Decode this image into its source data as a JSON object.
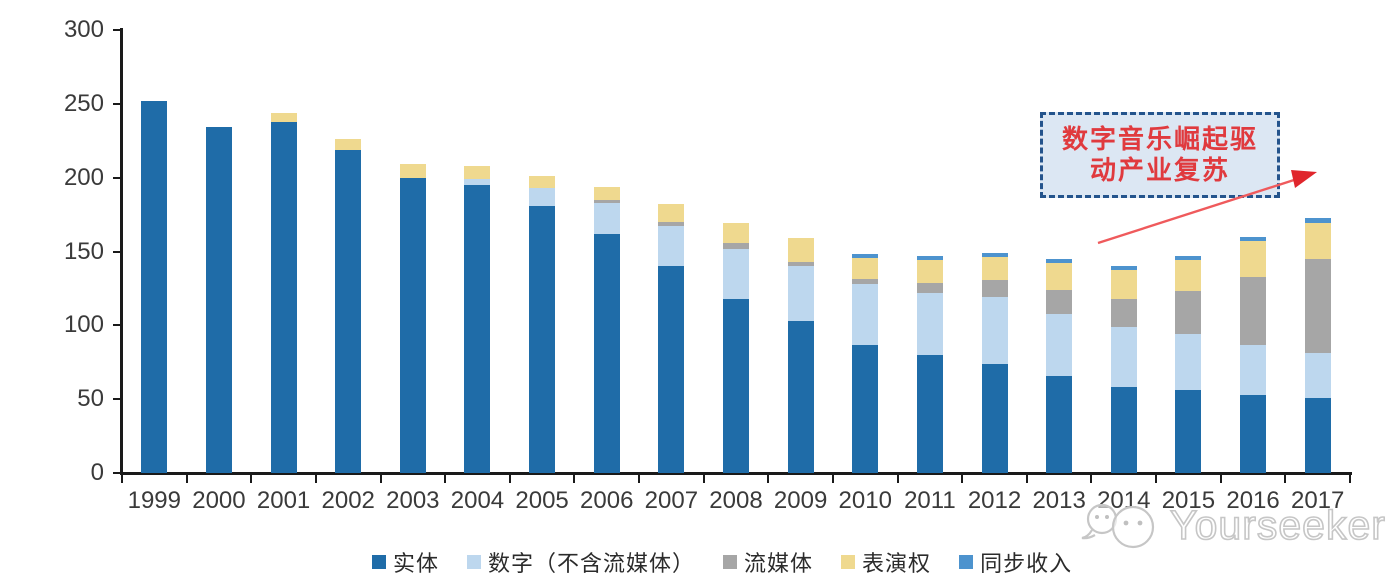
{
  "chart_data": {
    "type": "bar",
    "subtype": "stacked-vertical",
    "title": "",
    "xlabel": "",
    "ylabel": "",
    "ylim": [
      0,
      300
    ],
    "yticks": [
      0,
      50,
      100,
      150,
      200,
      250,
      300
    ],
    "grid": false,
    "legend_position": "bottom",
    "categories": [
      "1999",
      "2000",
      "2001",
      "2002",
      "2003",
      "2004",
      "2005",
      "2006",
      "2007",
      "2008",
      "2009",
      "2010",
      "2011",
      "2012",
      "2013",
      "2014",
      "2015",
      "2016",
      "2017"
    ],
    "series": [
      {
        "name": "实体",
        "color": "#1F6CA8",
        "values": [
          252,
          234,
          238,
          219,
          200,
          195,
          181,
          162,
          140,
          118,
          103,
          87,
          80,
          74,
          66,
          58,
          56,
          53,
          51
        ]
      },
      {
        "name": "数字（不含流媒体）",
        "color": "#BDD7EE",
        "values": [
          0,
          0,
          0,
          0,
          0,
          4,
          12,
          21,
          27,
          34,
          37,
          41,
          42,
          45,
          42,
          41,
          38,
          34,
          30
        ]
      },
      {
        "name": "流媒体",
        "color": "#A6A6A6",
        "values": [
          0,
          0,
          0,
          0,
          0,
          0,
          0,
          2,
          3,
          4,
          3,
          3.5,
          7,
          11.5,
          16,
          19,
          29,
          46,
          64
        ]
      },
      {
        "name": "表演权",
        "color": "#EFD98F",
        "values": [
          0,
          0,
          6,
          7,
          9,
          9,
          8,
          9,
          12,
          13,
          16,
          14,
          15,
          15.5,
          18,
          19.5,
          21,
          24,
          24
        ]
      },
      {
        "name": "同步收入",
        "color": "#4D93CE",
        "values": [
          0,
          0,
          0,
          0,
          0,
          0,
          0,
          0,
          0,
          0,
          0,
          3,
          3,
          3,
          3,
          2.5,
          3,
          3,
          3.5
        ]
      }
    ]
  },
  "annotation": {
    "line1": "数字音乐崛起驱",
    "line2": "动产业复苏",
    "box_fill": "#dce7f3",
    "box_border": "#24548c",
    "text_color": "#e03a3e",
    "arrow_color": "#ef5a5c"
  },
  "watermark": {
    "text": "Yourseeker"
  }
}
